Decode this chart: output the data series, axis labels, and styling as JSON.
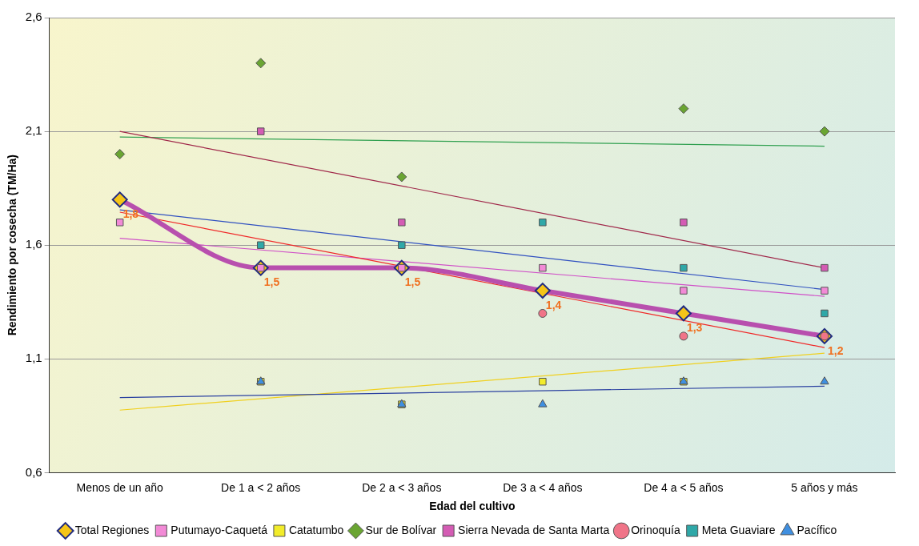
{
  "chart_data": {
    "type": "line",
    "xlabel": "Edad del cultivo",
    "ylabel": "Rendimiento por cosecha (TM/Ha)",
    "categories": [
      "Menos de un año",
      "De 1 a < 2 años",
      "De 2 a < 3 años",
      "De 3 a < 4 años",
      "De 4 a < 5 años",
      "5 años y más"
    ],
    "ylim": [
      0.6,
      2.6
    ],
    "yticks": [
      {
        "value": 0.6,
        "label": "0,6"
      },
      {
        "value": 1.1,
        "label": "1,1"
      },
      {
        "value": 1.6,
        "label": "1,6"
      },
      {
        "value": 2.1,
        "label": "2,1"
      },
      {
        "value": 2.6,
        "label": "2,6"
      }
    ],
    "grid": "y",
    "legend": "bottom",
    "series": [
      {
        "name": "Total Regiones",
        "color": "#b84fae",
        "marker": "diamond",
        "values": [
          1.8,
          1.5,
          1.5,
          1.4,
          1.3,
          1.2
        ],
        "value_labels": [
          "1,8",
          "1,5",
          "1,5",
          "1,4",
          "1,3",
          "1,2"
        ]
      },
      {
        "name": "Putumayo-Caquetá",
        "type": "scatter",
        "color": "#f28ad6",
        "marker": "square",
        "values": [
          1.7,
          1.5,
          1.5,
          1.5,
          1.4,
          1.4
        ]
      },
      {
        "name": "Catatumbo",
        "type": "scatter",
        "color": "#f2ec2a",
        "marker": "square",
        "values": [
          null,
          1.0,
          0.9,
          1.0,
          1.0,
          null
        ]
      },
      {
        "name": "Sur de Bolívar",
        "type": "scatter",
        "color": "#6aa532",
        "marker": "diamond",
        "values": [
          2.0,
          2.4,
          1.9,
          null,
          2.2,
          2.1
        ]
      },
      {
        "name": "Sierra Nevada de Santa Marta",
        "type": "scatter",
        "color": "#d45cb4",
        "marker": "square",
        "values": [
          null,
          2.1,
          1.7,
          null,
          1.7,
          1.5
        ]
      },
      {
        "name": "Orinoquía",
        "type": "scatter",
        "color": "#f07488",
        "marker": "circle",
        "values": [
          null,
          null,
          null,
          1.3,
          1.2,
          1.2
        ]
      },
      {
        "name": "Meta Guaviare",
        "type": "scatter",
        "color": "#2fa8a8",
        "marker": "square",
        "values": [
          null,
          1.6,
          1.6,
          1.7,
          1.5,
          1.3
        ]
      },
      {
        "name": "Pacífico",
        "type": "scatter",
        "color": "#3f8fe0",
        "marker": "triangle",
        "values": [
          null,
          1.0,
          0.9,
          0.9,
          1.0,
          1.0
        ]
      },
      {
        "type": "line",
        "color": "#a0284a",
        "marker": "none",
        "values": [
          2.1,
          null,
          null,
          null,
          null,
          1.5
        ]
      },
      {
        "type": "line",
        "color": "#30a050",
        "marker": "none",
        "values": [
          2.075,
          null,
          null,
          null,
          null,
          2.035
        ]
      },
      {
        "type": "line",
        "color": "#3050c0",
        "marker": "none",
        "values": [
          1.755,
          null,
          null,
          null,
          null,
          1.405
        ]
      },
      {
        "type": "line",
        "color": "#f02828",
        "marker": "none",
        "values": [
          1.745,
          null,
          null,
          null,
          null,
          1.15
        ]
      },
      {
        "type": "line",
        "color": "#d050c8",
        "marker": "none",
        "values": [
          1.63,
          null,
          null,
          null,
          null,
          1.375
        ]
      },
      {
        "type": "line",
        "color": "#2a40a0",
        "marker": "none",
        "values": [
          0.93,
          null,
          null,
          null,
          null,
          0.98
        ]
      },
      {
        "type": "line",
        "color": "#f0d020",
        "marker": "none",
        "values": [
          0.875,
          null,
          null,
          null,
          null,
          1.125
        ]
      }
    ]
  }
}
